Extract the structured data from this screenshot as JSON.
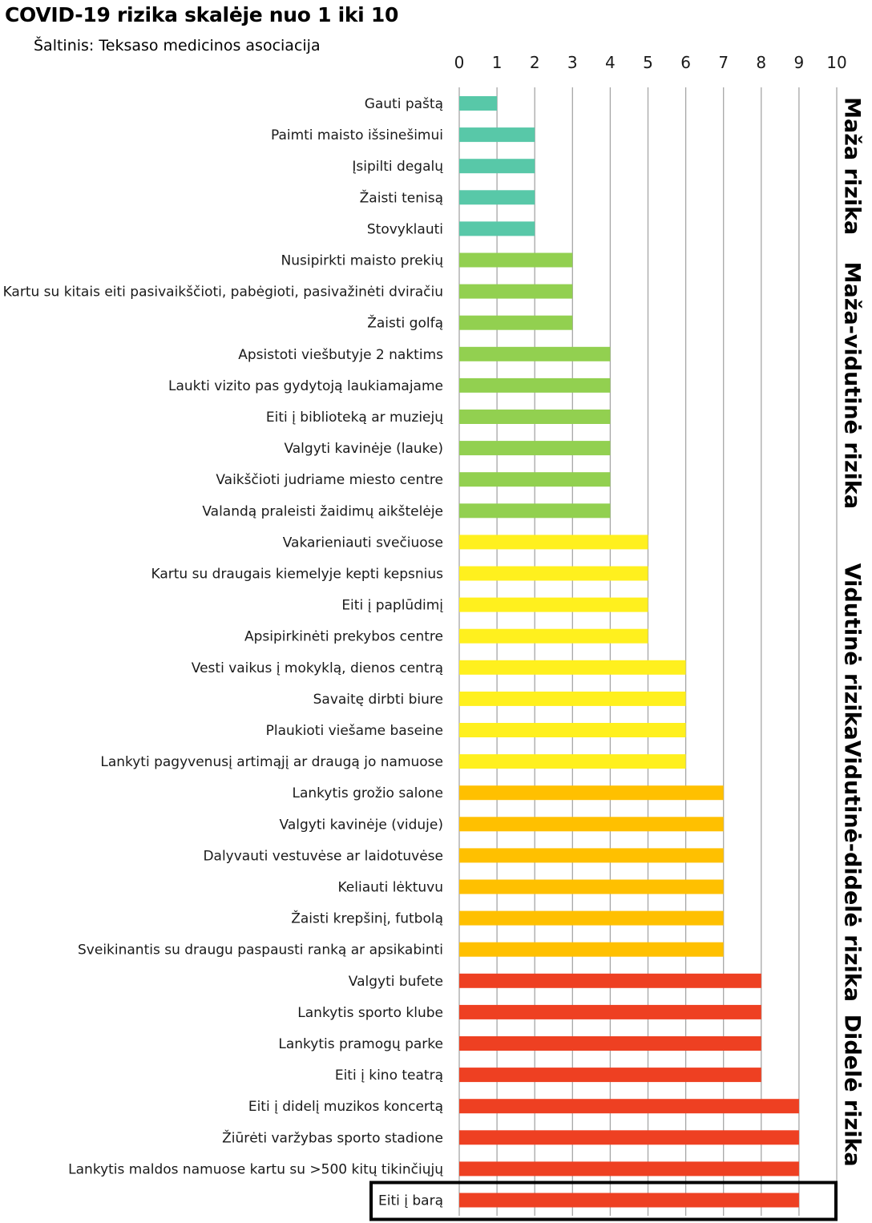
{
  "title": "COVID-19 rizika skalėje nuo 1 iki 10",
  "subtitle": "Šaltinis: Teksaso medicinos asociacija",
  "colors": {
    "low": "#58c8a8",
    "low_mid": "#92d050",
    "mid": "#fff01e",
    "mid_high": "#ffc000",
    "high": "#ee4022",
    "grid": "#a6a6a6",
    "highlight_border": "#000000"
  },
  "groups": [
    {
      "label": "Maža rizika",
      "color_key": "low",
      "from": 0,
      "to": 4
    },
    {
      "label": "Maža-vidutinė rizika",
      "color_key": "low_mid",
      "from": 5,
      "to": 13
    },
    {
      "label": "Vidutinė rizika",
      "color_key": "mid",
      "from": 14,
      "to": 21
    },
    {
      "label": "Vidutinė-didelė rizika",
      "color_key": "mid_high",
      "from": 22,
      "to": 27
    },
    {
      "label": "Didelė rizika",
      "color_key": "high",
      "from": 28,
      "to": 35
    }
  ],
  "highlighted_category": "Eiti į barą",
  "chart_data": {
    "type": "bar",
    "orientation": "horizontal",
    "xlim": [
      0,
      10
    ],
    "x_ticks": [
      "0",
      "1",
      "2",
      "3",
      "4",
      "5",
      "6",
      "7",
      "8",
      "9",
      "10"
    ],
    "grid": true,
    "categories": [
      "Gauti paštą",
      "Paimti maisto išsinešimui",
      "Įsipilti degalų",
      "Žaisti tenisą",
      "Stovyklauti",
      "Nusipirkti maisto prekių",
      "Kartu su kitais eiti pasivaikščioti, pabėgioti, pasivažinėti dviračiu",
      "Žaisti golfą",
      "Apsistoti viešbutyje 2 naktims",
      "Laukti vizito pas gydytoją laukiamajame",
      "Eiti į biblioteką ar muziejų",
      "Valgyti kavinėje (lauke)",
      "Vaikščioti judriame miesto centre",
      "Valandą praleisti žaidimų aikštelėje",
      "Vakarieniauti svečiuose",
      "Kartu su draugais kiemelyje kepti kepsnius",
      "Eiti į paplūdimį",
      "Apsipirkinėti prekybos centre",
      "Vesti vaikus į mokyklą, dienos centrą",
      "Savaitę dirbti biure",
      "Plaukioti viešame baseine",
      "Lankyti pagyvenusį artimąjį ar draugą jo namuose",
      "Lankytis grožio salone",
      "Valgyti kavinėje (viduje)",
      "Dalyvauti vestuvėse ar laidotuvėse",
      "Keliauti lėktuvu",
      "Žaisti krepšinį, futbolą",
      "Sveikinantis su draugu paspausti ranką ar apsikabinti",
      "Valgyti bufete",
      "Lankytis sporto klube",
      "Lankytis pramogų parke",
      "Eiti į kino teatrą",
      "Eiti į didelį muzikos koncertą",
      "Žiūrėti varžybas sporto stadione",
      "Lankytis maldos namuose kartu su >500 kitų tikinčiųjų",
      "Eiti į barą"
    ],
    "values": [
      1,
      2,
      2,
      2,
      2,
      3,
      3,
      3,
      4,
      4,
      4,
      4,
      4,
      4,
      5,
      5,
      5,
      5,
      6,
      6,
      6,
      6,
      7,
      7,
      7,
      7,
      7,
      7,
      8,
      8,
      8,
      8,
      9,
      9,
      9,
      9
    ]
  }
}
